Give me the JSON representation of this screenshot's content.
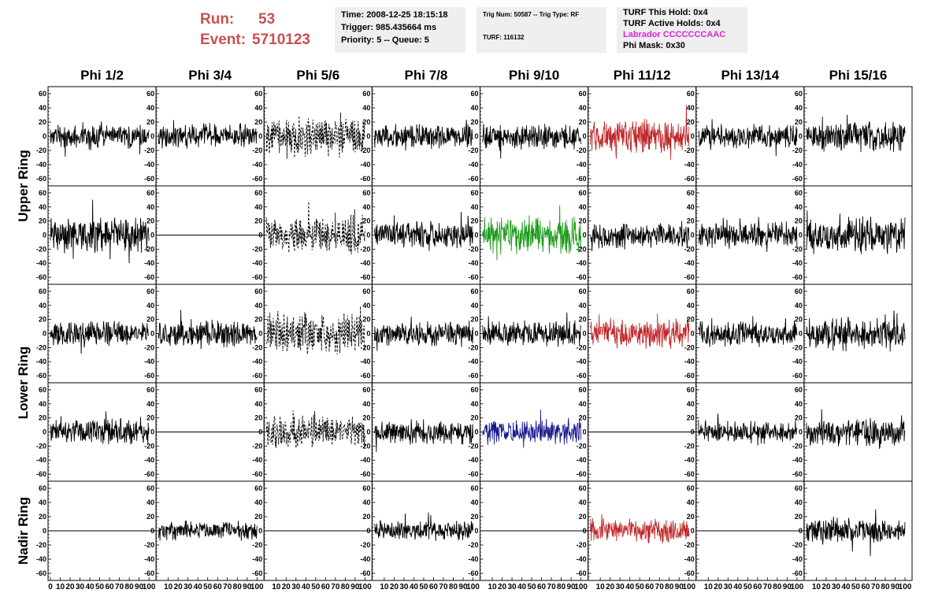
{
  "header": {
    "run_label": "Run:",
    "run_value": "53",
    "event_label": "Event:",
    "event_value": "5710123"
  },
  "info_time": {
    "time": "Time: 2008-12-25 18:15:18",
    "trigger": "Trigger: 985.435664 ms",
    "priority": "Priority: 5 -- Queue: 5"
  },
  "info_trig": {
    "trig": "Trig Num: 50587 -- Trig Type: RF",
    "turf": "TURF: 116132"
  },
  "info_turf": {
    "this_hold": "TURF This Hold: 0x4",
    "active_holds": "TURF Active Holds: 0x4",
    "labrador": "Labrador CCCCCCCAAC",
    "phi_mask": "Phi Mask: 0x30"
  },
  "colors": {
    "run_text": "#c8504f",
    "labrador": "#e020e0",
    "black": "#000000",
    "red": "#c0282a",
    "green": "#1c9a1c",
    "blue": "#1a1a8c"
  },
  "chart_data": {
    "type": "line",
    "columns": [
      "Phi 1/2",
      "Phi 3/4",
      "Phi 5/6",
      "Phi 7/8",
      "Phi 9/10",
      "Phi 11/12",
      "Phi 13/14",
      "Phi 15/16"
    ],
    "ring_labels": [
      "Upper Ring",
      "Lower Ring",
      "Nadir Ring"
    ],
    "rows_per_ring": [
      2,
      2,
      1
    ],
    "ylim": [
      -70,
      70
    ],
    "xlim": [
      0,
      100
    ],
    "y_ticks": [
      "-60",
      "-40",
      "-20",
      "0",
      "20",
      "40",
      "60"
    ],
    "x_ticks": [
      "0",
      "10",
      "20",
      "30",
      "40",
      "50",
      "60",
      "70",
      "80",
      "90",
      "100"
    ],
    "panels": [
      [
        {
          "style": "noise",
          "color": "black",
          "amp": 17,
          "seed": 11
        },
        {
          "style": "noise",
          "color": "black",
          "amp": 16,
          "seed": 12
        },
        {
          "style": "dashed",
          "color": "black",
          "amp": 26,
          "seed": 13
        },
        {
          "style": "noise",
          "color": "black",
          "amp": 16,
          "seed": 14
        },
        {
          "style": "noise",
          "color": "black",
          "amp": 17,
          "seed": 15
        },
        {
          "style": "noise",
          "color": "red",
          "amp": 22,
          "seed": 16
        },
        {
          "style": "noise",
          "color": "black",
          "amp": 16,
          "seed": 17
        },
        {
          "style": "noise",
          "color": "black",
          "amp": 20,
          "seed": 18
        }
      ],
      [
        {
          "style": "noise",
          "color": "black",
          "amp": 25,
          "seed": 21
        },
        {
          "style": "flat",
          "color": "black",
          "amp": 0,
          "seed": 22
        },
        {
          "style": "dashed",
          "color": "black",
          "amp": 26,
          "seed": 23
        },
        {
          "style": "noise",
          "color": "black",
          "amp": 18,
          "seed": 24
        },
        {
          "style": "noise",
          "color": "green",
          "amp": 25,
          "seed": 25
        },
        {
          "style": "noise",
          "color": "black",
          "amp": 18,
          "seed": 26
        },
        {
          "style": "noise",
          "color": "black",
          "amp": 17,
          "seed": 27
        },
        {
          "style": "noise",
          "color": "black",
          "amp": 24,
          "seed": 28
        }
      ],
      [
        {
          "style": "noise",
          "color": "black",
          "amp": 17,
          "seed": 31
        },
        {
          "style": "noise",
          "color": "black",
          "amp": 18,
          "seed": 32
        },
        {
          "style": "dashed",
          "color": "black",
          "amp": 28,
          "seed": 33
        },
        {
          "style": "noise",
          "color": "black",
          "amp": 16,
          "seed": 34
        },
        {
          "style": "noise",
          "color": "black",
          "amp": 17,
          "seed": 35
        },
        {
          "style": "noise",
          "color": "red",
          "amp": 20,
          "seed": 36
        },
        {
          "style": "noise",
          "color": "black",
          "amp": 17,
          "seed": 37
        },
        {
          "style": "noise",
          "color": "black",
          "amp": 22,
          "seed": 38
        }
      ],
      [
        {
          "style": "noise",
          "color": "black",
          "amp": 18,
          "seed": 41
        },
        {
          "style": "flat",
          "color": "black",
          "amp": 0,
          "seed": 42
        },
        {
          "style": "dashed",
          "color": "black",
          "amp": 22,
          "seed": 43
        },
        {
          "style": "noise",
          "color": "black",
          "amp": 16,
          "seed": 44
        },
        {
          "style": "noise",
          "color": "blue",
          "amp": 17,
          "seed": 45
        },
        {
          "style": "flat",
          "color": "black",
          "amp": 0,
          "seed": 46
        },
        {
          "style": "noise",
          "color": "black",
          "amp": 15,
          "seed": 47
        },
        {
          "style": "noise",
          "color": "black",
          "amp": 20,
          "seed": 48
        }
      ],
      [
        {
          "style": "flat",
          "color": "black",
          "amp": 0,
          "seed": 51
        },
        {
          "style": "noise",
          "color": "black",
          "amp": 13,
          "seed": 52
        },
        {
          "style": "flat",
          "color": "black",
          "amp": 0,
          "seed": 53
        },
        {
          "style": "noise",
          "color": "black",
          "amp": 14,
          "seed": 54
        },
        {
          "style": "flat",
          "color": "black",
          "amp": 0,
          "seed": 55
        },
        {
          "style": "noise",
          "color": "red",
          "amp": 16,
          "seed": 56
        },
        {
          "style": "flat",
          "color": "black",
          "amp": 0,
          "seed": 57
        },
        {
          "style": "noise",
          "color": "black",
          "amp": 17,
          "seed": 58
        }
      ]
    ]
  }
}
